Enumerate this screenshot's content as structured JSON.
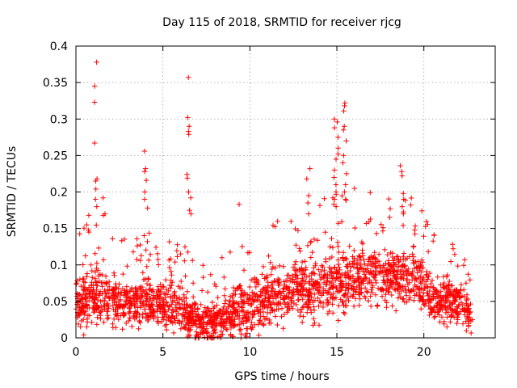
{
  "chart_data": {
    "type": "scatter",
    "title": "Day 115 of 2018, SRMTID for receiver rjcg",
    "xlabel": "GPS time / hours",
    "ylabel": "SRMTID / TECUs",
    "xlim": [
      0,
      24.1
    ],
    "ylim": [
      0,
      0.4
    ],
    "grid": true,
    "marker": "+",
    "series_color": "#ff0000",
    "x_ticks": [
      {
        "value": 0,
        "label": "0"
      },
      {
        "value": 5,
        "label": "5"
      },
      {
        "value": 10,
        "label": "10"
      },
      {
        "value": 15,
        "label": "15"
      },
      {
        "value": 20,
        "label": "20"
      }
    ],
    "y_ticks": [
      {
        "value": 0,
        "label": "0"
      },
      {
        "value": 0.05,
        "label": "0.05"
      },
      {
        "value": 0.1,
        "label": "0.1"
      },
      {
        "value": 0.15,
        "label": "0.15"
      },
      {
        "value": 0.2,
        "label": "0.2"
      },
      {
        "value": 0.25,
        "label": "0.25"
      },
      {
        "value": 0.3,
        "label": "0.3"
      },
      {
        "value": 0.35,
        "label": "0.35"
      },
      {
        "value": 0.4,
        "label": "0.4"
      }
    ],
    "peaks": [
      {
        "x": 1.15,
        "y": [
          0.378,
          0.345,
          0.323,
          0.267,
          0.218,
          0.215,
          0.204,
          0.19,
          0.18
        ]
      },
      {
        "x": 4.0,
        "y": [
          0.256,
          0.232,
          0.228,
          0.216,
          0.2,
          0.19,
          0.178,
          0.132
        ]
      },
      {
        "x": 6.5,
        "y": [
          0.357,
          0.302,
          0.29,
          0.283,
          0.279,
          0.224,
          0.219,
          0.2,
          0.192,
          0.175,
          0.17
        ]
      },
      {
        "x": 13.35,
        "y": [
          0.232,
          0.218,
          0.195,
          0.185,
          0.17
        ]
      },
      {
        "x": 14.95,
        "y": [
          0.3,
          0.296,
          0.288,
          0.275,
          0.26,
          0.252,
          0.245,
          0.23,
          0.22,
          0.21,
          0.2,
          0.19,
          0.18
        ]
      },
      {
        "x": 15.45,
        "y": [
          0.322,
          0.318,
          0.311,
          0.29,
          0.285,
          0.27,
          0.25,
          0.24,
          0.225,
          0.21,
          0.2,
          0.19
        ]
      },
      {
        "x": 18.75,
        "y": [
          0.236,
          0.228,
          0.222,
          0.198,
          0.19,
          0.18,
          0.17
        ]
      },
      {
        "x": 9.3,
        "y": [
          0.183
        ]
      },
      {
        "x": 1.6,
        "y": [
          0.192,
          0.17,
          0.168
        ]
      },
      {
        "x": 0.65,
        "y": [
          0.168,
          0.155,
          0.145
        ]
      }
    ],
    "envelope": [
      {
        "x": 0.0,
        "median": 0.05,
        "spread": 0.04
      },
      {
        "x": 1.0,
        "median": 0.055,
        "spread": 0.05
      },
      {
        "x": 2.0,
        "median": 0.05,
        "spread": 0.04
      },
      {
        "x": 3.0,
        "median": 0.045,
        "spread": 0.04
      },
      {
        "x": 4.0,
        "median": 0.055,
        "spread": 0.045
      },
      {
        "x": 5.0,
        "median": 0.045,
        "spread": 0.04
      },
      {
        "x": 6.0,
        "median": 0.04,
        "spread": 0.04
      },
      {
        "x": 7.0,
        "median": 0.025,
        "spread": 0.035
      },
      {
        "x": 8.0,
        "median": 0.02,
        "spread": 0.03
      },
      {
        "x": 9.0,
        "median": 0.04,
        "spread": 0.045
      },
      {
        "x": 10.0,
        "median": 0.045,
        "spread": 0.045
      },
      {
        "x": 11.0,
        "median": 0.055,
        "spread": 0.045
      },
      {
        "x": 12.0,
        "median": 0.06,
        "spread": 0.045
      },
      {
        "x": 13.0,
        "median": 0.065,
        "spread": 0.05
      },
      {
        "x": 14.0,
        "median": 0.07,
        "spread": 0.05
      },
      {
        "x": 15.0,
        "median": 0.08,
        "spread": 0.055
      },
      {
        "x": 16.0,
        "median": 0.085,
        "spread": 0.055
      },
      {
        "x": 17.0,
        "median": 0.085,
        "spread": 0.05
      },
      {
        "x": 18.0,
        "median": 0.08,
        "spread": 0.05
      },
      {
        "x": 19.0,
        "median": 0.085,
        "spread": 0.05
      },
      {
        "x": 19.6,
        "median": 0.09,
        "spread": 0.05
      },
      {
        "x": 20.5,
        "median": 0.05,
        "spread": 0.04
      },
      {
        "x": 21.5,
        "median": 0.05,
        "spread": 0.04
      },
      {
        "x": 22.3,
        "median": 0.045,
        "spread": 0.035
      },
      {
        "x": 22.8,
        "median": 0.02,
        "spread": 0.02
      }
    ],
    "bulk_points": 2300,
    "bulk_seed": 115
  }
}
